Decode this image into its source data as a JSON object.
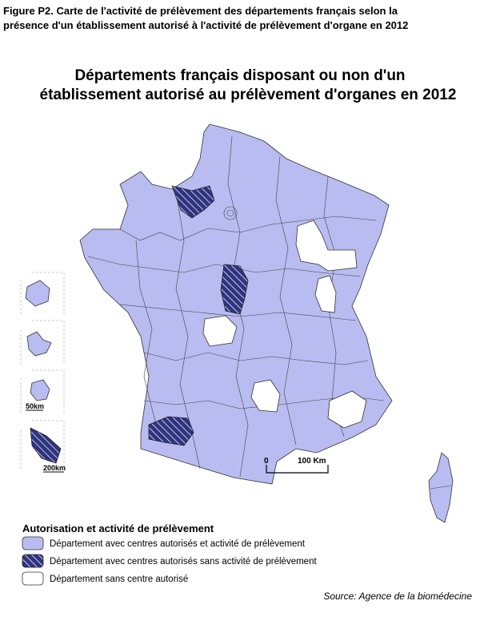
{
  "header": {
    "caption": [
      "Figure P2. Carte de l'activité de prélèvement des départements français selon la",
      "présence d'un établissement autorisé à l'activité de prélèvement d'organe en 2012"
    ]
  },
  "map": {
    "title": [
      "Départements français disposant ou non d'un",
      "établissement autorisé au prélèvement d'organes en 2012"
    ],
    "scale": {
      "start": "0",
      "end": "100 Km"
    },
    "insets": {
      "small": "50km",
      "large": "200km"
    }
  },
  "legend": {
    "title": "Autorisation et activité de prélèvement",
    "items": [
      "Département avec centres autorisés et activité de prélèvement",
      "Département avec centres autorisés sans activité de prélèvement",
      "Département sans centre autorisé"
    ]
  },
  "source": "Source: Agence de la biomédecine"
}
